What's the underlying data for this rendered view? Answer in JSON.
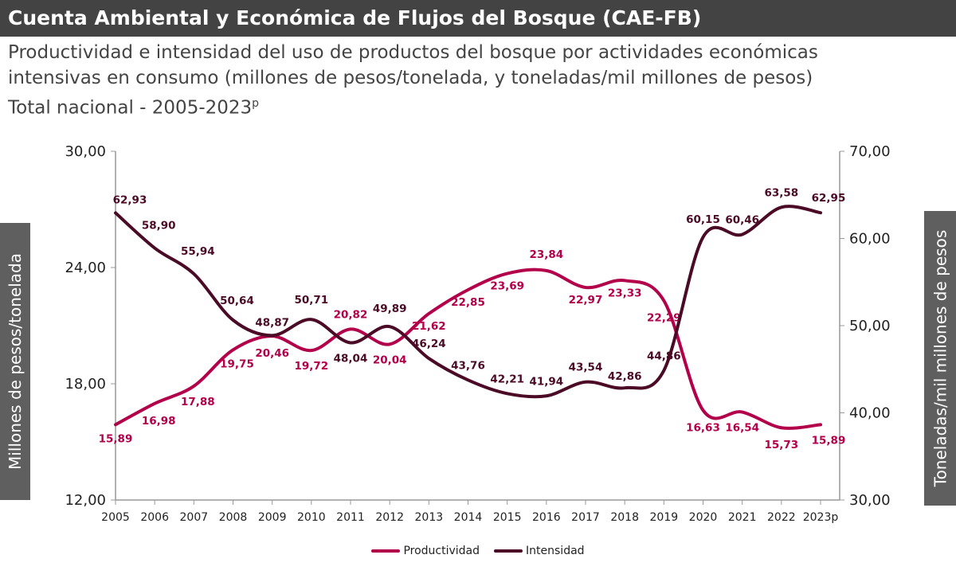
{
  "header": {
    "title": "Cuenta Ambiental y Económica de Flujos del Bosque (CAE-FB)"
  },
  "subtitle": {
    "line1": "Productividad e intensidad del uso de productos del bosque por actividades económicas",
    "line2": "intensivas en consumo (millones de pesos/tonelada, y toneladas/mil millones de pesos)",
    "line3": "Total nacional - 2005-2023",
    "line3_sup": "p"
  },
  "chart_data": {
    "type": "line",
    "smooth": true,
    "categories": [
      "2005",
      "2006",
      "2007",
      "2008",
      "2009",
      "2010",
      "2011",
      "2012",
      "2013",
      "2014",
      "2015",
      "2016",
      "2017",
      "2018",
      "2019",
      "2020",
      "2021",
      "2022",
      "2023p"
    ],
    "ylabel": "Millones de pesos/tonelada",
    "ylabel_right": "Toneladas/mil millones de pesos",
    "ylim": [
      12,
      30
    ],
    "yticks": [
      "12,00",
      "18,00",
      "24,00",
      "30,00"
    ],
    "ylim_right": [
      30,
      70
    ],
    "yticks_right": [
      "30,00",
      "40,00",
      "50,00",
      "60,00",
      "70,00"
    ],
    "grid": false,
    "legend_position": "bottom",
    "series": [
      {
        "name": "Productividad",
        "axis": "left",
        "color": "#b3004a",
        "values": [
          15.89,
          16.98,
          17.88,
          19.75,
          20.46,
          19.72,
          20.82,
          20.04,
          21.62,
          22.85,
          23.69,
          23.84,
          22.97,
          23.33,
          22.29,
          16.63,
          16.54,
          15.73,
          15.89
        ],
        "labels": [
          "15,89",
          "16,98",
          "17,88",
          "19,75",
          "20,46",
          "19,72",
          "20,82",
          "20,04",
          "21,62",
          "22,85",
          "23,69",
          "23,84",
          "22,97",
          "23,33",
          "22,29",
          "16,63",
          "16,54",
          "15,73",
          "15,89"
        ]
      },
      {
        "name": "Intensidad",
        "axis": "right",
        "color": "#4b0a26",
        "values": [
          62.93,
          58.9,
          55.94,
          50.64,
          48.87,
          50.71,
          48.04,
          49.89,
          46.24,
          43.76,
          42.21,
          41.94,
          43.54,
          42.86,
          44.86,
          60.15,
          60.46,
          63.58,
          62.95
        ],
        "labels": [
          "62,93",
          "58,90",
          "55,94",
          "50,64",
          "48,87",
          "50,71",
          "48,04",
          "49,89",
          "46,24",
          "43,76",
          "42,21",
          "41,94",
          "43,54",
          "42,86",
          "44,86",
          "60,15",
          "60,46",
          "63,58",
          "62,95"
        ]
      }
    ]
  }
}
